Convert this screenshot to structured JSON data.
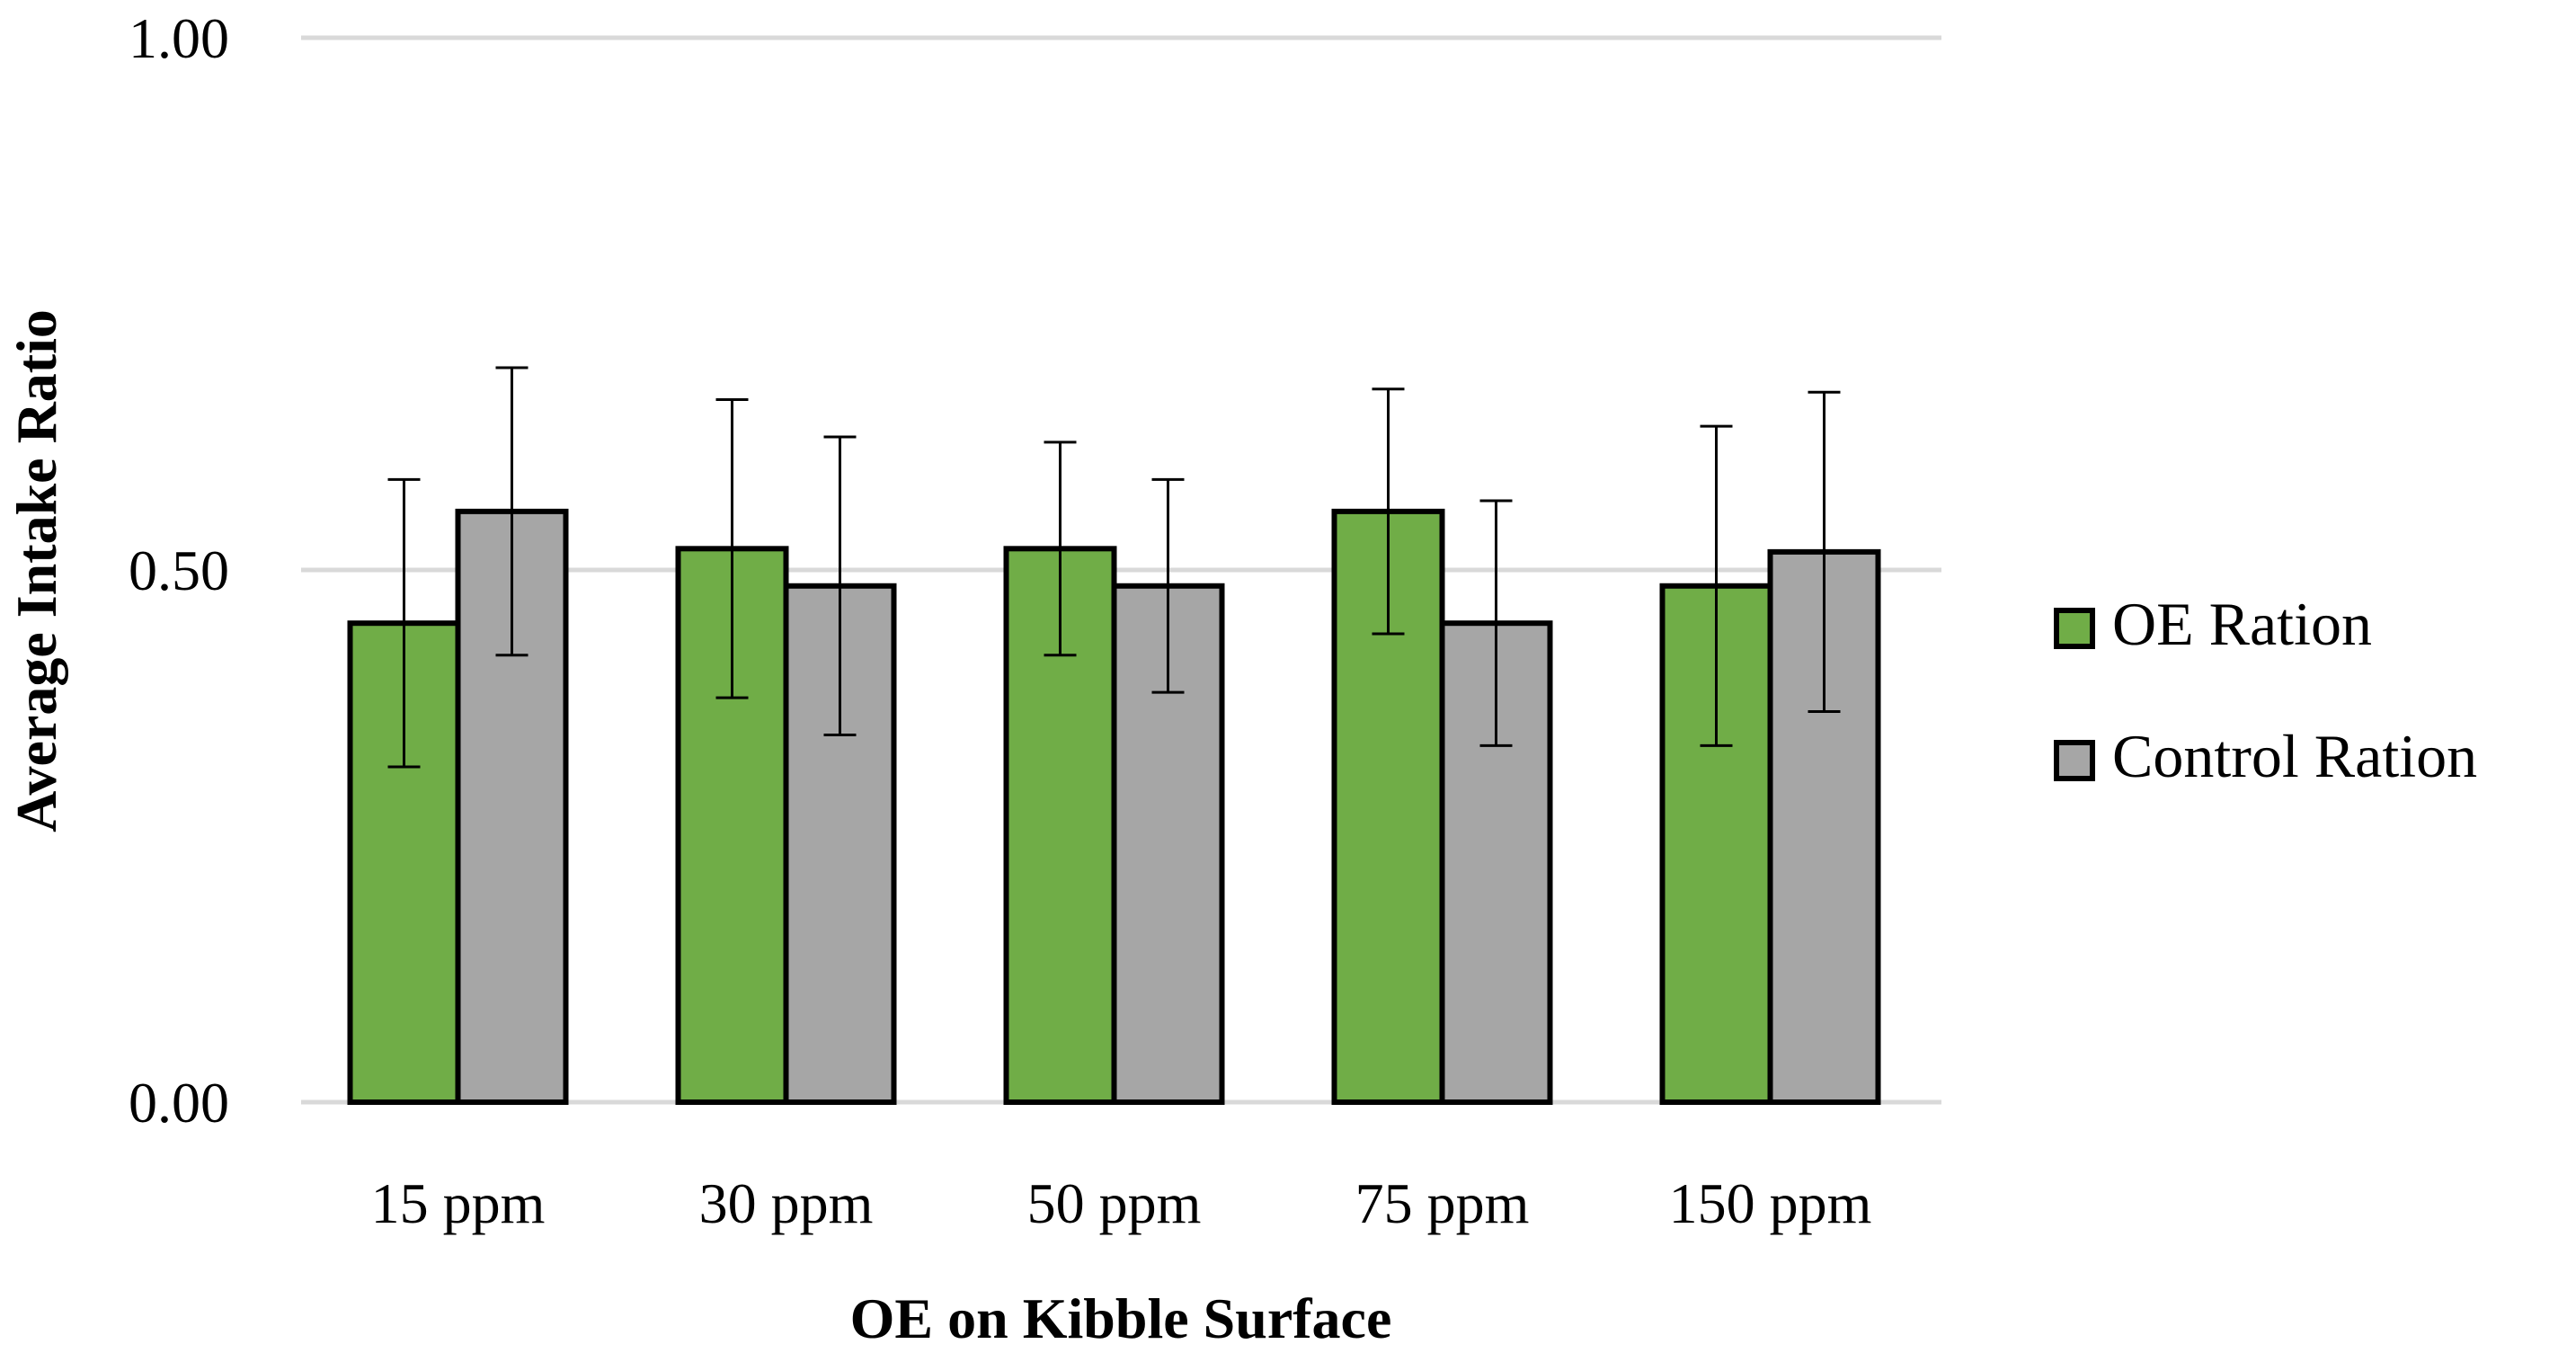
{
  "chart_data": {
    "type": "bar",
    "title": "",
    "xlabel": "OE on Kibble Surface",
    "ylabel": "Average Intake Ratio",
    "categories": [
      "15 ppm",
      "30 ppm",
      "50 ppm",
      "75 ppm",
      "150 ppm"
    ],
    "series": [
      {
        "name": "OE Ration",
        "color": "#70ad47",
        "values": [
          0.45,
          0.52,
          0.52,
          0.555,
          0.485
        ],
        "error": [
          0.135,
          0.14,
          0.1,
          0.115,
          0.15
        ]
      },
      {
        "name": "Control Ration",
        "color": "#a6a6a6",
        "values": [
          0.555,
          0.485,
          0.485,
          0.45,
          0.517
        ],
        "error": [
          0.135,
          0.14,
          0.1,
          0.115,
          0.15
        ]
      }
    ],
    "ylim": [
      0,
      1
    ],
    "yticks": [
      "0.00",
      "0.50",
      "1.00"
    ],
    "grid": true,
    "legend": "right"
  }
}
